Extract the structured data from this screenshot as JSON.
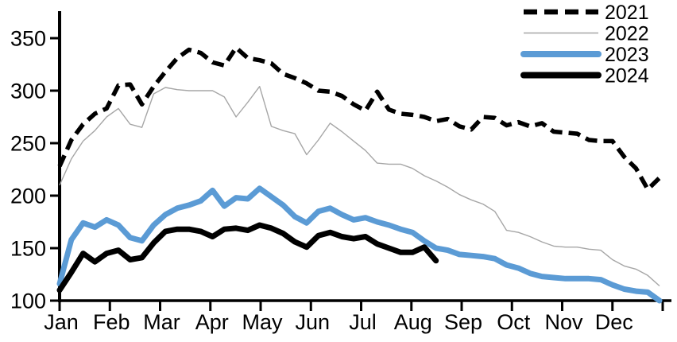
{
  "chart_data": {
    "type": "line",
    "title": "",
    "xlabel": "",
    "ylabel": "",
    "x_unit": "weekly, Jan-Dec",
    "months": [
      "Jan",
      "Feb",
      "Mar",
      "Apr",
      "May",
      "Jun",
      "Jul",
      "Aug",
      "Sep",
      "Oct",
      "Nov",
      "Dec"
    ],
    "y_ticks": [
      100,
      150,
      200,
      250,
      300,
      350
    ],
    "ylim": [
      100,
      376
    ],
    "grid": false,
    "legend_position": "top-right",
    "background_color": "#ffffff",
    "axis_color": "#000000",
    "series": [
      {
        "name": "2021",
        "color": "#000000",
        "style": "dashed",
        "width": 5.5,
        "values": [
          228,
          253,
          268,
          278,
          283,
          305,
          306,
          287,
          304,
          318,
          331,
          339,
          336,
          327,
          324,
          341,
          331,
          329,
          326,
          316,
          312,
          307,
          300,
          299,
          295,
          287,
          281,
          299,
          282,
          278,
          277,
          275,
          271,
          273,
          266,
          263,
          275,
          274,
          267,
          270,
          266,
          269,
          261,
          260,
          259,
          253,
          252,
          252,
          237,
          226,
          206,
          217
        ]
      },
      {
        "name": "2022",
        "color": "#a6a6a6",
        "style": "solid",
        "width": 1.4,
        "values": [
          210,
          235,
          252,
          262,
          275,
          283,
          268,
          265,
          297,
          303,
          301,
          300,
          300,
          300,
          294,
          275,
          289,
          304,
          266,
          262,
          259,
          239,
          253,
          269,
          261,
          252,
          243,
          231,
          230,
          230,
          226,
          219,
          214,
          208,
          201,
          196,
          192,
          185,
          167,
          165,
          161,
          156,
          152,
          151,
          151,
          149,
          148,
          139,
          133,
          130,
          124,
          114
        ]
      },
      {
        "name": "2023",
        "color": "#5b9bd5",
        "style": "solid",
        "width": 7,
        "values": [
          116,
          158,
          174,
          170,
          177,
          172,
          160,
          157,
          172,
          182,
          188,
          191,
          195,
          205,
          190,
          198,
          197,
          207,
          199,
          191,
          180,
          174,
          185,
          188,
          182,
          177,
          179,
          175,
          172,
          168,
          165,
          157,
          150,
          148,
          144,
          143,
          142,
          140,
          134,
          131,
          126,
          123,
          122,
          121,
          121,
          121,
          120,
          115,
          111,
          109,
          108,
          100
        ]
      },
      {
        "name": "2024",
        "color": "#000000",
        "style": "solid",
        "width": 7,
        "values": [
          110,
          127,
          145,
          137,
          145,
          148,
          139,
          141,
          155,
          166,
          168,
          168,
          166,
          161,
          168,
          169,
          167,
          172,
          169,
          164,
          156,
          151,
          162,
          165,
          161,
          159,
          161,
          154,
          150,
          146,
          146,
          151,
          138
        ]
      }
    ]
  }
}
